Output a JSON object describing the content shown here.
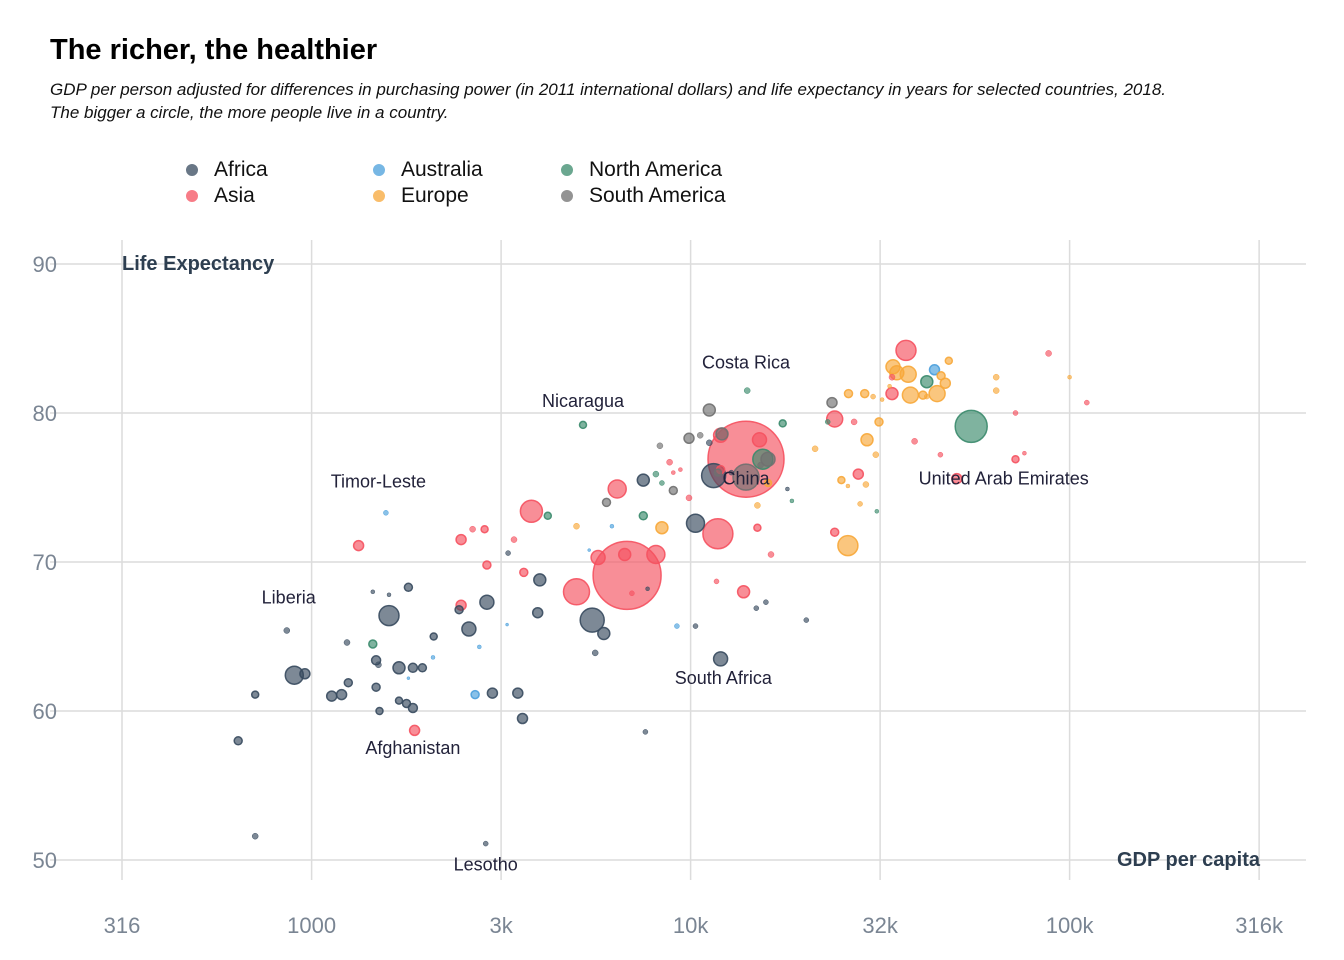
{
  "title": "The richer, the healthier",
  "subtitle_line1": "GDP per person adjusted for differences in purchasing power (in 2011 international dollars) and life expectancy in years for selected countries, 2018.",
  "subtitle_line2": "The bigger a circle, the more people live in a country.",
  "legend": [
    {
      "label": "Africa",
      "color": "#374a5e"
    },
    {
      "label": "Asia",
      "color": "#f5515f"
    },
    {
      "label": "Australia",
      "color": "#4a9fdb"
    },
    {
      "label": "Europe",
      "color": "#f7a739"
    },
    {
      "label": "North America",
      "color": "#3a8a6b"
    },
    {
      "label": "South America",
      "color": "#707070"
    }
  ],
  "chart_data": {
    "type": "scatter",
    "xlabel": "GDP per capita",
    "ylabel": "Life Expectancy",
    "x_scale": "log",
    "xlim": [
      316,
      400000
    ],
    "ylim": [
      50,
      90
    ],
    "x_ticks": [
      316,
      1000,
      3162,
      10000,
      31623,
      100000,
      316228
    ],
    "x_tick_labels": [
      "316",
      "1000",
      "3k",
      "10k",
      "32k",
      "100k",
      "316k"
    ],
    "y_ticks": [
      50,
      60,
      70,
      80,
      90
    ],
    "y_tick_labels": [
      "50",
      "60",
      "70",
      "80",
      "90"
    ],
    "grid": true,
    "legend_position": "top-left",
    "size_encoding": "population",
    "annotations": [
      {
        "text": "Costa Rica",
        "x": 14000,
        "y": 83
      },
      {
        "text": "Nicaragua",
        "x": 5200,
        "y": 80.4
      },
      {
        "text": "Timor-Leste",
        "x": 1500,
        "y": 75
      },
      {
        "text": "China",
        "x": 14000,
        "y": 75.2
      },
      {
        "text": "United Arab Emirates",
        "x": 67000,
        "y": 75.2
      },
      {
        "text": "Liberia",
        "x": 870,
        "y": 67.2
      },
      {
        "text": "South Africa",
        "x": 12200,
        "y": 61.8
      },
      {
        "text": "Afghanistan",
        "x": 1850,
        "y": 57.1
      },
      {
        "text": "Lesotho",
        "x": 2880,
        "y": 49.3
      }
    ],
    "series": [
      {
        "name": "Africa",
        "color": "#374a5e",
        "points": [
          {
            "x": 900,
            "y": 62.4,
            "s": 9
          },
          {
            "x": 1600,
            "y": 66.4,
            "s": 10
          },
          {
            "x": 5500,
            "y": 66.1,
            "s": 12
          },
          {
            "x": 11500,
            "y": 75.8,
            "s": 12
          },
          {
            "x": 10300,
            "y": 72.6,
            "s": 9
          },
          {
            "x": 12000,
            "y": 63.5,
            "s": 7
          },
          {
            "x": 2600,
            "y": 65.5,
            "s": 7
          },
          {
            "x": 2900,
            "y": 67.3,
            "s": 7
          },
          {
            "x": 1700,
            "y": 62.9,
            "s": 6
          },
          {
            "x": 4000,
            "y": 68.8,
            "s": 6
          },
          {
            "x": 5900,
            "y": 65.2,
            "s": 6
          },
          {
            "x": 7500,
            "y": 75.5,
            "s": 6
          },
          {
            "x": 3000,
            "y": 61.2,
            "s": 5
          },
          {
            "x": 3600,
            "y": 59.5,
            "s": 5
          },
          {
            "x": 3500,
            "y": 61.2,
            "s": 5
          },
          {
            "x": 3950,
            "y": 66.6,
            "s": 5
          },
          {
            "x": 960,
            "y": 62.5,
            "s": 5
          },
          {
            "x": 1200,
            "y": 61.1,
            "s": 5
          },
          {
            "x": 1130,
            "y": 61,
            "s": 5
          },
          {
            "x": 1850,
            "y": 62.9,
            "s": 4.5
          },
          {
            "x": 1850,
            "y": 60.2,
            "s": 4.5
          },
          {
            "x": 1480,
            "y": 63.4,
            "s": 4.5
          },
          {
            "x": 1800,
            "y": 68.3,
            "s": 4
          },
          {
            "x": 1780,
            "y": 60.5,
            "s": 4
          },
          {
            "x": 1480,
            "y": 61.6,
            "s": 4
          },
          {
            "x": 1250,
            "y": 61.9,
            "s": 4
          },
          {
            "x": 1960,
            "y": 62.9,
            "s": 4
          },
          {
            "x": 2450,
            "y": 66.8,
            "s": 4
          },
          {
            "x": 2100,
            "y": 65,
            "s": 3.5
          },
          {
            "x": 1700,
            "y": 60.7,
            "s": 3.5
          },
          {
            "x": 1510,
            "y": 60,
            "s": 3.5
          },
          {
            "x": 1500,
            "y": 63.1,
            "s": 3
          },
          {
            "x": 640,
            "y": 58,
            "s": 4
          },
          {
            "x": 710,
            "y": 61.1,
            "s": 3.5
          },
          {
            "x": 860,
            "y": 65.4,
            "s": 3
          },
          {
            "x": 710,
            "y": 51.6,
            "s": 3
          },
          {
            "x": 2880,
            "y": 51.1,
            "s": 2.5
          },
          {
            "x": 1240,
            "y": 64.6,
            "s": 3
          },
          {
            "x": 1450,
            "y": 68,
            "s": 2
          },
          {
            "x": 1600,
            "y": 67.8,
            "s": 2
          },
          {
            "x": 3300,
            "y": 70.6,
            "s": 2.5
          },
          {
            "x": 5600,
            "y": 63.9,
            "s": 3
          },
          {
            "x": 7600,
            "y": 58.6,
            "s": 2.5
          },
          {
            "x": 10300,
            "y": 65.7,
            "s": 2.5
          },
          {
            "x": 11200,
            "y": 78,
            "s": 3
          },
          {
            "x": 14900,
            "y": 66.9,
            "s": 2.5
          },
          {
            "x": 15800,
            "y": 67.3,
            "s": 2.5
          },
          {
            "x": 20200,
            "y": 66.1,
            "s": 2.5
          },
          {
            "x": 12800,
            "y": 76,
            "s": 2.5
          },
          {
            "x": 18000,
            "y": 74.9,
            "s": 2
          },
          {
            "x": 7700,
            "y": 68.2,
            "s": 2
          }
        ]
      },
      {
        "name": "Asia",
        "color": "#f5515f",
        "points": [
          {
            "x": 14000,
            "y": 76.9,
            "s": 38
          },
          {
            "x": 6800,
            "y": 69.1,
            "s": 34
          },
          {
            "x": 11800,
            "y": 71.9,
            "s": 15
          },
          {
            "x": 5000,
            "y": 68,
            "s": 13
          },
          {
            "x": 3800,
            "y": 73.4,
            "s": 11
          },
          {
            "x": 8100,
            "y": 70.5,
            "s": 9
          },
          {
            "x": 6400,
            "y": 74.9,
            "s": 9
          },
          {
            "x": 37000,
            "y": 84.2,
            "s": 10
          },
          {
            "x": 24000,
            "y": 79.6,
            "s": 8
          },
          {
            "x": 5700,
            "y": 70.3,
            "s": 7
          },
          {
            "x": 12000,
            "y": 78.5,
            "s": 7
          },
          {
            "x": 6700,
            "y": 70.5,
            "s": 6
          },
          {
            "x": 15200,
            "y": 78.2,
            "s": 7
          },
          {
            "x": 34000,
            "y": 81.3,
            "s": 6
          },
          {
            "x": 27700,
            "y": 75.9,
            "s": 5
          },
          {
            "x": 13800,
            "y": 68,
            "s": 6
          },
          {
            "x": 50400,
            "y": 75.6,
            "s": 5
          },
          {
            "x": 1870,
            "y": 58.7,
            "s": 5
          },
          {
            "x": 1330,
            "y": 71.1,
            "s": 5
          },
          {
            "x": 2480,
            "y": 71.5,
            "s": 5
          },
          {
            "x": 2480,
            "y": 67.1,
            "s": 5
          },
          {
            "x": 2900,
            "y": 69.8,
            "s": 4
          },
          {
            "x": 3630,
            "y": 69.3,
            "s": 4
          },
          {
            "x": 2860,
            "y": 72.2,
            "s": 3.5
          },
          {
            "x": 2660,
            "y": 72.2,
            "s": 3
          },
          {
            "x": 3420,
            "y": 71.5,
            "s": 3
          },
          {
            "x": 24000,
            "y": 72,
            "s": 4
          },
          {
            "x": 15000,
            "y": 72.3,
            "s": 3.5
          },
          {
            "x": 12000,
            "y": 76.2,
            "s": 4
          },
          {
            "x": 8800,
            "y": 76.7,
            "s": 3
          },
          {
            "x": 9900,
            "y": 74.3,
            "s": 3
          },
          {
            "x": 11700,
            "y": 68.7,
            "s": 2.5
          },
          {
            "x": 16300,
            "y": 70.5,
            "s": 3
          },
          {
            "x": 27000,
            "y": 79.4,
            "s": 3
          },
          {
            "x": 34000,
            "y": 82.4,
            "s": 3
          },
          {
            "x": 39000,
            "y": 78.1,
            "s": 3
          },
          {
            "x": 72000,
            "y": 76.9,
            "s": 3.5
          },
          {
            "x": 72000,
            "y": 80,
            "s": 2.5
          },
          {
            "x": 88000,
            "y": 84,
            "s": 3
          },
          {
            "x": 111000,
            "y": 80.7,
            "s": 2.5
          },
          {
            "x": 45600,
            "y": 77.2,
            "s": 2.5
          },
          {
            "x": 7000,
            "y": 67.9,
            "s": 2.5
          },
          {
            "x": 9400,
            "y": 76.2,
            "s": 2
          },
          {
            "x": 76000,
            "y": 77.3,
            "s": 2
          },
          {
            "x": 9000,
            "y": 76,
            "s": 2
          }
        ]
      },
      {
        "name": "Australia",
        "color": "#4a9fdb",
        "points": [
          {
            "x": 44000,
            "y": 82.9,
            "s": 5
          },
          {
            "x": 2700,
            "y": 61.1,
            "s": 4
          },
          {
            "x": 1570,
            "y": 73.3,
            "s": 2.5
          },
          {
            "x": 6200,
            "y": 72.4,
            "s": 2
          },
          {
            "x": 9200,
            "y": 65.7,
            "s": 2.5
          },
          {
            "x": 2770,
            "y": 64.3,
            "s": 2
          },
          {
            "x": 2090,
            "y": 63.6,
            "s": 2
          },
          {
            "x": 3280,
            "y": 65.8,
            "s": 1.5
          },
          {
            "x": 5400,
            "y": 70.8,
            "s": 1.5
          },
          {
            "x": 1800,
            "y": 62.2,
            "s": 1.5
          }
        ]
      },
      {
        "name": "Europe",
        "color": "#f7a739",
        "points": [
          {
            "x": 26000,
            "y": 71.1,
            "s": 10
          },
          {
            "x": 38000,
            "y": 81.2,
            "s": 8
          },
          {
            "x": 35000,
            "y": 82.7,
            "s": 7
          },
          {
            "x": 37500,
            "y": 82.6,
            "s": 8
          },
          {
            "x": 44700,
            "y": 81.3,
            "s": 8
          },
          {
            "x": 34200,
            "y": 83.1,
            "s": 7
          },
          {
            "x": 29200,
            "y": 78.2,
            "s": 6
          },
          {
            "x": 8400,
            "y": 72.3,
            "s": 6
          },
          {
            "x": 47000,
            "y": 82,
            "s": 5
          },
          {
            "x": 26100,
            "y": 81.3,
            "s": 4
          },
          {
            "x": 28800,
            "y": 81.3,
            "s": 4
          },
          {
            "x": 31400,
            "y": 79.4,
            "s": 4
          },
          {
            "x": 45800,
            "y": 82.5,
            "s": 4
          },
          {
            "x": 41000,
            "y": 81.2,
            "s": 4
          },
          {
            "x": 48000,
            "y": 83.5,
            "s": 3.5
          },
          {
            "x": 64000,
            "y": 81.5,
            "s": 3
          },
          {
            "x": 64000,
            "y": 82.4,
            "s": 3
          },
          {
            "x": 25000,
            "y": 75.5,
            "s": 3.5
          },
          {
            "x": 16000,
            "y": 75.3,
            "s": 3.5
          },
          {
            "x": 30800,
            "y": 77.2,
            "s": 3
          },
          {
            "x": 29000,
            "y": 75.2,
            "s": 3
          },
          {
            "x": 15000,
            "y": 73.8,
            "s": 3
          },
          {
            "x": 21300,
            "y": 77.6,
            "s": 3
          },
          {
            "x": 28000,
            "y": 73.9,
            "s": 2.5
          },
          {
            "x": 30300,
            "y": 81.1,
            "s": 2.5
          },
          {
            "x": 42000,
            "y": 81.1,
            "s": 2.5
          },
          {
            "x": 5000,
            "y": 72.4,
            "s": 3
          },
          {
            "x": 100000,
            "y": 82.4,
            "s": 2
          },
          {
            "x": 32000,
            "y": 80.9,
            "s": 2
          },
          {
            "x": 26000,
            "y": 75.1,
            "s": 2
          },
          {
            "x": 33500,
            "y": 81.8,
            "s": 2
          }
        ]
      },
      {
        "name": "North America",
        "color": "#3a8a6b",
        "points": [
          {
            "x": 55000,
            "y": 79.1,
            "s": 16
          },
          {
            "x": 15500,
            "y": 76.9,
            "s": 10
          },
          {
            "x": 42000,
            "y": 82.1,
            "s": 6
          },
          {
            "x": 7500,
            "y": 73.1,
            "s": 4
          },
          {
            "x": 1450,
            "y": 64.5,
            "s": 4
          },
          {
            "x": 14100,
            "y": 81.5,
            "s": 3
          },
          {
            "x": 5200,
            "y": 79.2,
            "s": 3.5
          },
          {
            "x": 4200,
            "y": 73.1,
            "s": 3.5
          },
          {
            "x": 17500,
            "y": 79.3,
            "s": 3.5
          },
          {
            "x": 8100,
            "y": 75.9,
            "s": 3
          },
          {
            "x": 8400,
            "y": 75.3,
            "s": 2.5
          },
          {
            "x": 23000,
            "y": 79.4,
            "s": 2.5
          },
          {
            "x": 31000,
            "y": 73.4,
            "s": 2
          },
          {
            "x": 18500,
            "y": 74.1,
            "s": 2
          }
        ]
      },
      {
        "name": "South America",
        "color": "#707070",
        "points": [
          {
            "x": 14000,
            "y": 75.7,
            "s": 13
          },
          {
            "x": 16000,
            "y": 76.9,
            "s": 7
          },
          {
            "x": 12100,
            "y": 78.6,
            "s": 6
          },
          {
            "x": 11200,
            "y": 80.2,
            "s": 6
          },
          {
            "x": 23600,
            "y": 80.7,
            "s": 5
          },
          {
            "x": 9900,
            "y": 78.3,
            "s": 5
          },
          {
            "x": 6000,
            "y": 74,
            "s": 4
          },
          {
            "x": 9000,
            "y": 74.8,
            "s": 4
          },
          {
            "x": 11800,
            "y": 76,
            "s": 3.5
          },
          {
            "x": 8300,
            "y": 77.8,
            "s": 3
          },
          {
            "x": 10600,
            "y": 78.5,
            "s": 3
          },
          {
            "x": 15300,
            "y": 76.5,
            "s": 3
          }
        ]
      }
    ]
  }
}
